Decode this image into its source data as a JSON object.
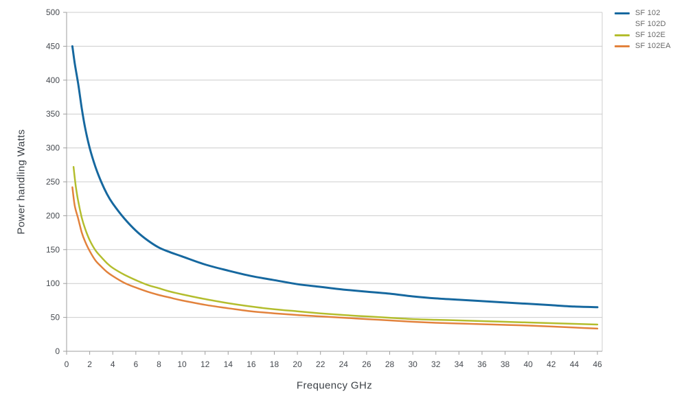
{
  "page": {
    "background_color": "#ffffff"
  },
  "chart_data": {
    "type": "line",
    "title": "",
    "xlabel": "Frequency GHz",
    "ylabel": "Power handling Watts",
    "xlim": [
      0,
      46
    ],
    "ylim": [
      0,
      500
    ],
    "x_tick_step": 2,
    "y_tick_step": 50,
    "grid": "horizontal",
    "legend_position": "top-right",
    "colors": {
      "axis": "#9e9e9e",
      "grid": "#cccccc",
      "tick_label": "#45494f",
      "axis_title": "#3b4046",
      "legend_text": "#666666",
      "plot_background": "#ffffff"
    },
    "series": [
      {
        "name": "SF 102",
        "color": "#16689f",
        "points": [
          [
            0.5,
            450
          ],
          [
            0.7,
            425
          ],
          [
            1,
            395
          ],
          [
            1.3,
            360
          ],
          [
            1.6,
            330
          ],
          [
            2,
            300
          ],
          [
            2.5,
            272
          ],
          [
            3,
            250
          ],
          [
            3.5,
            232
          ],
          [
            4,
            218
          ],
          [
            5,
            196
          ],
          [
            6,
            178
          ],
          [
            7,
            164
          ],
          [
            8,
            153
          ],
          [
            9,
            146
          ],
          [
            10,
            140
          ],
          [
            12,
            128
          ],
          [
            14,
            119
          ],
          [
            16,
            111
          ],
          [
            18,
            105
          ],
          [
            20,
            99
          ],
          [
            22,
            95
          ],
          [
            24,
            91
          ],
          [
            26,
            88
          ],
          [
            28,
            85
          ],
          [
            30,
            81
          ],
          [
            32,
            78
          ],
          [
            34,
            76
          ],
          [
            36,
            74
          ],
          [
            38,
            72
          ],
          [
            40,
            70
          ],
          [
            42,
            68
          ],
          [
            44,
            66
          ],
          [
            46,
            65
          ]
        ]
      },
      {
        "name": "SF 102D",
        "color": "#ffffff",
        "points": []
      },
      {
        "name": "SF 102E",
        "color": "#b3bd2d",
        "points": [
          [
            0.6,
            272
          ],
          [
            0.8,
            243
          ],
          [
            1,
            222
          ],
          [
            1.3,
            198
          ],
          [
            1.6,
            181
          ],
          [
            2,
            164
          ],
          [
            2.5,
            149
          ],
          [
            3,
            139
          ],
          [
            3.5,
            130
          ],
          [
            4,
            123
          ],
          [
            5,
            113
          ],
          [
            6,
            105
          ],
          [
            7,
            98
          ],
          [
            8,
            93
          ],
          [
            9,
            88
          ],
          [
            10,
            84
          ],
          [
            12,
            77
          ],
          [
            14,
            71
          ],
          [
            16,
            66
          ],
          [
            18,
            62
          ],
          [
            20,
            59
          ],
          [
            22,
            56
          ],
          [
            24,
            53.5
          ],
          [
            26,
            51.5
          ],
          [
            28,
            49.5
          ],
          [
            30,
            47.5
          ],
          [
            32,
            46.5
          ],
          [
            34,
            45.5
          ],
          [
            36,
            44.5
          ],
          [
            38,
            43.5
          ],
          [
            40,
            42.5
          ],
          [
            42,
            41.5
          ],
          [
            44,
            40.5
          ],
          [
            46,
            39.5
          ]
        ]
      },
      {
        "name": "SF 102EA",
        "color": "#e2823c",
        "points": [
          [
            0.5,
            242
          ],
          [
            0.7,
            215
          ],
          [
            1,
            196
          ],
          [
            1.3,
            176
          ],
          [
            1.6,
            162
          ],
          [
            2,
            148
          ],
          [
            2.5,
            134
          ],
          [
            3,
            125
          ],
          [
            3.5,
            117
          ],
          [
            4,
            111
          ],
          [
            5,
            101
          ],
          [
            6,
            94
          ],
          [
            7,
            88
          ],
          [
            8,
            83
          ],
          [
            9,
            79
          ],
          [
            10,
            75
          ],
          [
            12,
            68.5
          ],
          [
            14,
            63.5
          ],
          [
            16,
            59
          ],
          [
            18,
            56
          ],
          [
            20,
            53.5
          ],
          [
            22,
            51.5
          ],
          [
            24,
            49.5
          ],
          [
            26,
            47.5
          ],
          [
            28,
            45.5
          ],
          [
            30,
            43.5
          ],
          [
            32,
            42
          ],
          [
            34,
            41
          ],
          [
            36,
            40
          ],
          [
            38,
            39
          ],
          [
            40,
            38
          ],
          [
            42,
            36.5
          ],
          [
            44,
            35
          ],
          [
            46,
            33.5
          ]
        ]
      }
    ]
  }
}
